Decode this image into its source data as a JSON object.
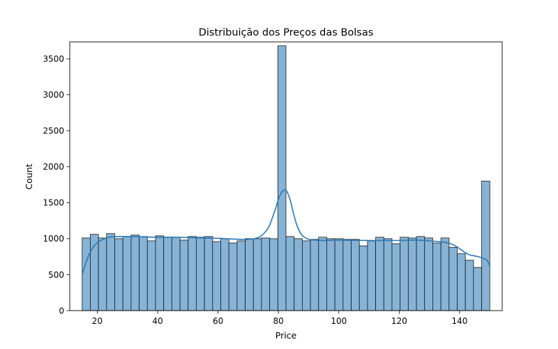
{
  "chart_data": {
    "type": "bar",
    "subtype": "histogram-with-kde",
    "title": "Distribuição dos Preços das Bolsas",
    "xlabel": "Price",
    "ylabel": "Count",
    "xlim": [
      10.9,
      154.1
    ],
    "ylim": [
      0,
      3735
    ],
    "xticks": [
      20,
      40,
      60,
      80,
      100,
      120,
      140
    ],
    "yticks": [
      0,
      500,
      1000,
      1500,
      2000,
      2500,
      3000,
      3500
    ],
    "grid": false,
    "bin_start": 15,
    "bin_width": 2.7,
    "bin_counts": [
      1010,
      1060,
      1010,
      1070,
      1000,
      1030,
      1050,
      1030,
      970,
      1040,
      1020,
      1020,
      980,
      1030,
      1020,
      1030,
      960,
      1000,
      940,
      970,
      1000,
      1000,
      1010,
      1000,
      3680,
      1030,
      1000,
      970,
      990,
      1020,
      1000,
      1000,
      990,
      990,
      900,
      970,
      1020,
      1000,
      930,
      1020,
      1010,
      1030,
      1010,
      940,
      1010,
      880,
      790,
      700,
      600,
      1800
    ],
    "kde": {
      "x": [
        15,
        17,
        19,
        21,
        23,
        25,
        27,
        30,
        35,
        40,
        45,
        50,
        55,
        60,
        65,
        68,
        70,
        72,
        74,
        76,
        77,
        78,
        79,
        80,
        81,
        82,
        83,
        84,
        85,
        86,
        87,
        88,
        90,
        92,
        95,
        100,
        110,
        120,
        125,
        130,
        135,
        137,
        139,
        141,
        143,
        145,
        147,
        149,
        150
      ],
      "y": [
        500,
        750,
        900,
        970,
        1010,
        1025,
        1030,
        1030,
        1025,
        1020,
        1020,
        1015,
        1010,
        1005,
        995,
        990,
        990,
        1000,
        1030,
        1110,
        1180,
        1290,
        1410,
        1550,
        1640,
        1680,
        1640,
        1520,
        1350,
        1200,
        1100,
        1040,
        990,
        980,
        975,
        980,
        975,
        975,
        980,
        970,
        950,
        930,
        890,
        830,
        780,
        760,
        740,
        700,
        620
      ]
    },
    "colors": {
      "bar_fill": "#86b3d6",
      "bar_edge": "#1a1a1a",
      "kde_line": "#2a78b3"
    }
  }
}
